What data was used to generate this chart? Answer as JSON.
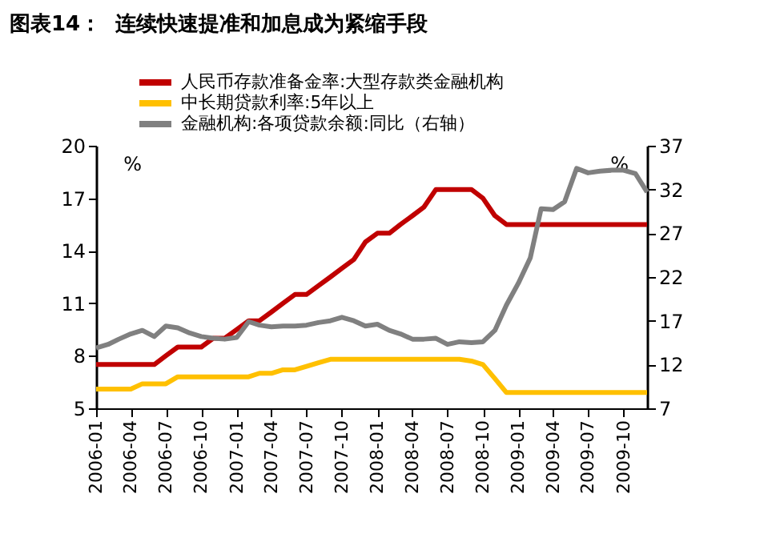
{
  "chart_data": {
    "type": "line",
    "title": "图表14：  连续快速提准和加息成为紧缩手段",
    "ylabel": "%",
    "y2label": "%",
    "x": [
      "2006-01",
      "2006-02",
      "2006-03",
      "2006-04",
      "2006-05",
      "2006-06",
      "2006-07",
      "2006-08",
      "2006-09",
      "2006-10",
      "2006-11",
      "2006-12",
      "2007-01",
      "2007-02",
      "2007-03",
      "2007-04",
      "2007-05",
      "2007-06",
      "2007-07",
      "2007-08",
      "2007-09",
      "2007-10",
      "2007-11",
      "2007-12",
      "2008-01",
      "2008-02",
      "2008-03",
      "2008-04",
      "2008-05",
      "2008-06",
      "2008-07",
      "2008-08",
      "2008-09",
      "2008-10",
      "2008-11",
      "2008-12",
      "2009-01",
      "2009-02",
      "2009-03",
      "2009-04",
      "2009-05",
      "2009-06",
      "2009-07",
      "2009-08",
      "2009-09",
      "2009-10",
      "2009-11",
      "2009-12"
    ],
    "series": [
      {
        "name": "人民币存款准备金率:大型存款类金融机构",
        "color": "#c00000",
        "values": [
          7.5,
          7.5,
          7.5,
          7.5,
          7.5,
          7.5,
          8.0,
          8.5,
          8.5,
          8.5,
          9.0,
          9.0,
          9.5,
          10,
          10,
          10.5,
          11,
          11.5,
          11.5,
          12,
          12.5,
          13,
          13.5,
          14.5,
          15,
          15,
          15.5,
          16,
          16.5,
          17.5,
          17.5,
          17.5,
          17.5,
          17,
          16,
          15.5,
          15.5,
          15.5,
          15.5,
          15.5,
          15.5,
          15.5,
          15.5,
          15.5,
          15.5,
          15.5,
          15.5,
          15.5
        ]
      },
      {
        "name": "中长期贷款利率:5年以上",
        "color": "#ffc000",
        "values": [
          6.1,
          6.1,
          6.1,
          6.1,
          6.4,
          6.4,
          6.4,
          6.8,
          6.8,
          6.8,
          6.8,
          6.8,
          6.8,
          6.8,
          7.0,
          7.0,
          7.2,
          7.2,
          7.4,
          7.6,
          7.8,
          7.8,
          7.8,
          7.8,
          7.8,
          7.8,
          7.8,
          7.8,
          7.8,
          7.8,
          7.8,
          7.8,
          7.7,
          7.5,
          6.7,
          5.9,
          5.9,
          5.9,
          5.9,
          5.9,
          5.9,
          5.9,
          5.9,
          5.9,
          5.9,
          5.9,
          5.9,
          5.9
        ]
      },
      {
        "name": "金融机构:各项贷款余额:同比（右轴）",
        "color": "#808080",
        "axis": "y2",
        "values": [
          13.9,
          14.3,
          14.9,
          15.5,
          15.9,
          15.2,
          16.4,
          16.2,
          15.6,
          15.2,
          15.0,
          14.9,
          15.1,
          16.9,
          16.5,
          16.3,
          16.4,
          16.4,
          16.5,
          16.8,
          17.0,
          17.4,
          17.0,
          16.4,
          16.6,
          15.9,
          15.5,
          14.9,
          14.9,
          15.0,
          14.3,
          14.6,
          14.5,
          14.6,
          15.9,
          18.8,
          21.3,
          24.2,
          29.8,
          29.7,
          30.6,
          34.4,
          33.9,
          34.1,
          34.2,
          34.2,
          33.8,
          31.7
        ]
      }
    ],
    "xlim": [
      "2006-01",
      "2009-12"
    ],
    "xticks": [
      "2006-01",
      "2006-04",
      "2006-07",
      "2006-10",
      "2007-01",
      "2007-04",
      "2007-07",
      "2007-10",
      "2008-01",
      "2008-04",
      "2008-07",
      "2008-10",
      "2009-01",
      "2009-04",
      "2009-07",
      "2009-10"
    ],
    "ylim": [
      5,
      20
    ],
    "yticks": [
      5,
      8,
      11,
      14,
      17,
      20
    ],
    "y2lim": [
      7,
      37
    ],
    "y2ticks": [
      7,
      12,
      17,
      22,
      27,
      32,
      37
    ],
    "legend": "top",
    "grid": false
  }
}
